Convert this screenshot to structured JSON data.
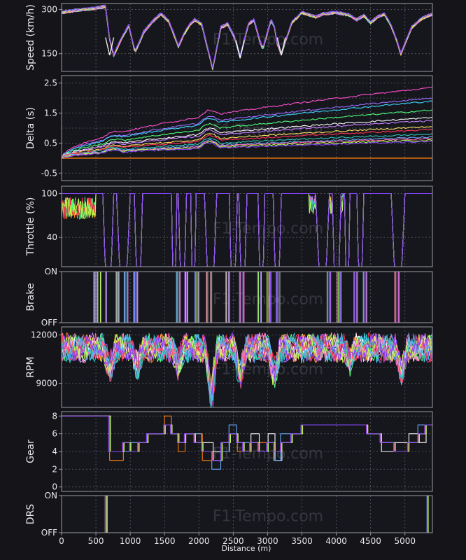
{
  "watermark": "F1-Tempo.com",
  "colors": {
    "background": "#141419",
    "panel": "#16171d",
    "frame": "#9a9aa4",
    "grid": "#5a5b63",
    "text": "#e8e8ec"
  },
  "chart_data": {
    "type": "line",
    "x_axis": {
      "label": "Distance (m)",
      "range": [
        0,
        5400
      ],
      "ticks": [
        0,
        500,
        1000,
        1500,
        2000,
        2500,
        3000,
        3500,
        4000,
        4500,
        5000
      ]
    },
    "series_colors": [
      "#ff7f0e",
      "#ff4fcf",
      "#9b6bff",
      "#3fd8ff",
      "#4dff7a",
      "#ffffff",
      "#c77dff",
      "#ffe066",
      "#ff3355",
      "#2ec4b6",
      "#66aaff",
      "#ff66aa",
      "#b8ff4d",
      "#8844ff"
    ],
    "panels": [
      {
        "id": "speed",
        "ylabel": "Speed (km/h)",
        "range": [
          90,
          320
        ],
        "ticks": [
          150,
          300
        ],
        "tick_labels": [
          "150",
          "300"
        ],
        "grid_y": [
          150,
          300
        ],
        "profile": [
          [
            0,
            290
          ],
          [
            250,
            298
          ],
          [
            500,
            305
          ],
          [
            640,
            310
          ],
          [
            700,
            200
          ],
          [
            760,
            145
          ],
          [
            880,
            205
          ],
          [
            980,
            245
          ],
          [
            1070,
            155
          ],
          [
            1200,
            225
          ],
          [
            1350,
            265
          ],
          [
            1450,
            285
          ],
          [
            1560,
            260
          ],
          [
            1620,
            225
          ],
          [
            1700,
            175
          ],
          [
            1780,
            215
          ],
          [
            1870,
            250
          ],
          [
            1940,
            265
          ],
          [
            2040,
            250
          ],
          [
            2120,
            175
          ],
          [
            2200,
            100
          ],
          [
            2320,
            240
          ],
          [
            2420,
            250
          ],
          [
            2520,
            205
          ],
          [
            2600,
            140
          ],
          [
            2720,
            250
          ],
          [
            2800,
            265
          ],
          [
            2880,
            200
          ],
          [
            2930,
            165
          ],
          [
            3050,
            265
          ],
          [
            3100,
            240
          ],
          [
            3140,
            185
          ],
          [
            3200,
            150
          ],
          [
            3350,
            255
          ],
          [
            3500,
            290
          ],
          [
            3700,
            275
          ],
          [
            3820,
            285
          ],
          [
            4000,
            290
          ],
          [
            4200,
            280
          ],
          [
            4300,
            265
          ],
          [
            4400,
            280
          ],
          [
            4500,
            255
          ],
          [
            4600,
            275
          ],
          [
            4700,
            285
          ],
          [
            4800,
            245
          ],
          [
            4880,
            195
          ],
          [
            4940,
            150
          ],
          [
            5100,
            240
          ],
          [
            5250,
            270
          ],
          [
            5400,
            285
          ]
        ],
        "chevrons": [
          {
            "x": 700,
            "depth": 150
          },
          {
            "x": 2600,
            "depth": 140
          },
          {
            "x": 3200,
            "depth": 150
          }
        ]
      },
      {
        "id": "delta",
        "ylabel": "Delta (s)",
        "range": [
          -0.75,
          2.75
        ],
        "ticks": [
          -0.5,
          0.5,
          1.5,
          2.5
        ],
        "tick_labels": [
          "-0.5",
          "0.5",
          "1.5",
          "2.5"
        ],
        "grid_y": [
          -0.5,
          0.0,
          0.5,
          1.0,
          1.5,
          2.0,
          2.5
        ],
        "reference_value": 0,
        "series_final": [
          2.35,
          2.0,
          1.9,
          1.6,
          1.35,
          1.25,
          1.05,
          0.95,
          0.8,
          0.7,
          0.65,
          0.6,
          0.55
        ]
      },
      {
        "id": "throttle",
        "ylabel": "Throttle (%)",
        "range": [
          0,
          110
        ],
        "ticks": [
          40,
          100
        ],
        "tick_labels": [
          "40",
          "100"
        ],
        "grid_y": [
          40,
          100
        ],
        "zones": [
          [
            600,
            760
          ],
          [
            800,
            1000
          ],
          [
            1060,
            1180
          ],
          [
            1600,
            1680
          ],
          [
            1700,
            1820
          ],
          [
            1880,
            1960
          ],
          [
            2080,
            2260
          ],
          [
            2440,
            2560
          ],
          [
            2580,
            2700
          ],
          [
            2860,
            2960
          ],
          [
            3080,
            3200
          ],
          [
            3700,
            3900
          ],
          [
            3940,
            4070
          ],
          [
            4120,
            4200
          ],
          [
            4300,
            4400
          ],
          [
            4800,
            5000
          ]
        ]
      },
      {
        "id": "brake",
        "ylabel": "Brake",
        "range": [
          0,
          1
        ],
        "ticks": [
          0,
          1
        ],
        "tick_labels": [
          "OFF",
          "ON"
        ],
        "grid_y": [
          0,
          1
        ],
        "zones": [
          [
            480,
            520
          ],
          [
            570,
            650
          ],
          [
            800,
            830
          ],
          [
            920,
            960
          ],
          [
            1060,
            1100
          ],
          [
            1680,
            1720
          ],
          [
            1800,
            1830
          ],
          [
            1950,
            1990
          ],
          [
            2120,
            2180
          ],
          [
            2400,
            2440
          ],
          [
            2600,
            2650
          ],
          [
            2860,
            2900
          ],
          [
            3000,
            3040
          ],
          [
            3130,
            3170
          ],
          [
            3870,
            3910
          ],
          [
            4020,
            4060
          ],
          [
            4260,
            4300
          ],
          [
            4400,
            4440
          ],
          [
            4860,
            4910
          ]
        ]
      },
      {
        "id": "rpm",
        "ylabel": "RPM",
        "range": [
          7500,
          12500
        ],
        "ticks": [
          9000,
          12000
        ],
        "tick_labels": [
          "9000",
          "12000"
        ],
        "grid_y": [
          9000,
          10000,
          11000,
          12000
        ],
        "base": 11200,
        "dips": [
          {
            "x": 700,
            "depth": 1500
          },
          {
            "x": 1100,
            "depth": 1300
          },
          {
            "x": 1700,
            "depth": 1200
          },
          {
            "x": 2180,
            "depth": 3400
          },
          {
            "x": 2600,
            "depth": 1900
          },
          {
            "x": 3100,
            "depth": 1800
          },
          {
            "x": 4200,
            "depth": 900
          },
          {
            "x": 4950,
            "depth": 1700
          }
        ]
      },
      {
        "id": "gear",
        "ylabel": "Gear",
        "range": [
          -0.5,
          8.5
        ],
        "ticks": [
          0,
          2,
          4,
          6,
          8
        ],
        "tick_labels": [
          "0",
          "2",
          "4",
          "6",
          "8"
        ],
        "grid_y": [
          0,
          2,
          4,
          6,
          8
        ],
        "steps": [
          [
            0,
            8
          ],
          [
            700,
            4
          ],
          [
            900,
            5
          ],
          [
            1000,
            4
          ],
          [
            1120,
            5
          ],
          [
            1250,
            6
          ],
          [
            1500,
            7
          ],
          [
            1600,
            6
          ],
          [
            1700,
            5
          ],
          [
            1800,
            6
          ],
          [
            1940,
            5
          ],
          [
            2050,
            4
          ],
          [
            2200,
            3
          ],
          [
            2330,
            5
          ],
          [
            2450,
            6
          ],
          [
            2560,
            5
          ],
          [
            2650,
            4
          ],
          [
            2750,
            5
          ],
          [
            2870,
            4
          ],
          [
            3000,
            5
          ],
          [
            3100,
            4
          ],
          [
            3200,
            5
          ],
          [
            3350,
            6
          ],
          [
            3500,
            7
          ],
          [
            4450,
            6
          ],
          [
            4650,
            5
          ],
          [
            4850,
            4
          ],
          [
            5050,
            5
          ],
          [
            5200,
            6
          ],
          [
            5300,
            7
          ],
          [
            5400,
            7
          ]
        ]
      },
      {
        "id": "drs",
        "ylabel": "DRS",
        "range": [
          0,
          1
        ],
        "ticks": [
          0,
          1
        ],
        "tick_labels": [
          "OFF",
          "ON"
        ],
        "grid_y": [
          0,
          1
        ],
        "on_segments": [
          [
            0,
            650
          ],
          [
            5330,
            5400
          ]
        ]
      }
    ]
  }
}
